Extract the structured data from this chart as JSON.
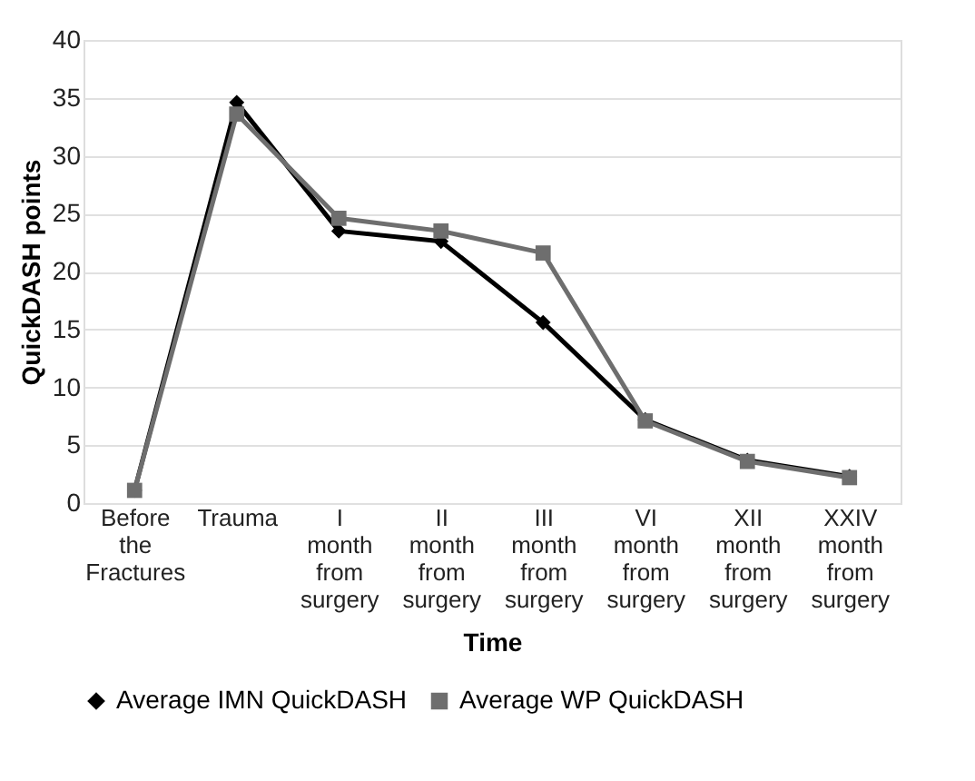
{
  "chart_data": {
    "type": "line",
    "xlabel": "Time",
    "ylabel": "QuickDASH points",
    "categories": [
      "Before the Fractures",
      "Trauma",
      "I month from surgery",
      "II month from surgery",
      "III month from surgery",
      "VI month from surgery",
      "XII month from surgery",
      "XXIV month from surgery"
    ],
    "series": [
      {
        "name": "Average IMN QuickDASH",
        "color": "#000000",
        "marker": "diamond",
        "values": [
          1.1,
          34.6,
          23.5,
          22.6,
          15.6,
          7.2,
          3.7,
          2.3
        ]
      },
      {
        "name": "Average WP QuickDASH",
        "color": "#6e6e6e",
        "marker": "square",
        "values": [
          1.1,
          33.6,
          24.6,
          23.5,
          21.6,
          7.1,
          3.6,
          2.2
        ]
      }
    ],
    "ylim": [
      0,
      40
    ],
    "yticks": [
      0,
      5,
      10,
      15,
      20,
      25,
      30,
      35,
      40
    ],
    "grid": "y",
    "legend": "bottom",
    "line_style": "solid"
  }
}
